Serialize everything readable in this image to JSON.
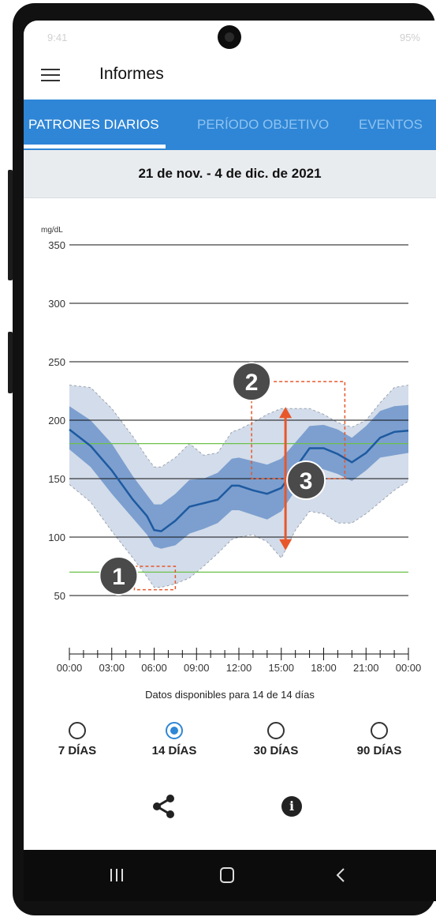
{
  "status_bar": {
    "time": "9:41",
    "indicators": "95%"
  },
  "app_bar": {
    "menu_icon": "hamburger-menu-icon",
    "title": "Informes"
  },
  "tabs": [
    {
      "label": "PATRONES DIARIOS",
      "active": true
    },
    {
      "label": "PERÍODO OBJETIVO",
      "active": false
    },
    {
      "label": "EVENTOS",
      "active": false
    }
  ],
  "date_range": "21 de nov. - 4 de dic. de 2021",
  "chart_data": {
    "type": "area",
    "title": "",
    "ylabel": "mg/dL",
    "xlabel": "",
    "ylim": [
      0,
      350
    ],
    "y_ticks": [
      50,
      100,
      150,
      200,
      250,
      300,
      350
    ],
    "x_ticks": [
      "00:00",
      "03:00",
      "06:00",
      "09:00",
      "12:00",
      "15:00",
      "18:00",
      "21:00",
      "00:00"
    ],
    "x_hours": [
      0,
      1.5,
      3,
      4.5,
      5.5,
      6,
      6.5,
      7.5,
      8.5,
      9.5,
      10.5,
      11.5,
      12,
      13,
      14,
      15,
      16,
      17,
      18,
      19,
      20,
      21,
      22,
      23,
      24
    ],
    "series": [
      {
        "values": [
          192,
          178,
          157,
          132,
          118,
          106,
          105,
          114,
          126,
          129,
          132,
          144,
          144,
          140,
          137,
          142,
          159,
          176,
          176,
          171,
          164,
          172,
          185,
          190,
          191
        ]
      },
      {
        "values": [
          212,
          200,
          180,
          152,
          136,
          128,
          128,
          137,
          149,
          150,
          155,
          167,
          168,
          165,
          162,
          167,
          181,
          195,
          196,
          192,
          185,
          195,
          208,
          212,
          213
        ]
      },
      {
        "values": [
          175,
          160,
          137,
          116,
          102,
          92,
          90,
          93,
          103,
          107,
          112,
          123,
          123,
          119,
          115,
          122,
          140,
          160,
          158,
          154,
          148,
          157,
          168,
          170,
          172
        ]
      },
      {
        "values": [
          230,
          228,
          210,
          186,
          168,
          160,
          160,
          168,
          180,
          170,
          172,
          190,
          192,
          198,
          205,
          210,
          210,
          210,
          205,
          198,
          194,
          200,
          215,
          228,
          230
        ]
      },
      {
        "values": [
          145,
          130,
          105,
          82,
          66,
          57,
          57,
          60,
          65,
          75,
          86,
          98,
          100,
          102,
          96,
          82,
          106,
          122,
          120,
          112,
          112,
          120,
          130,
          140,
          148
        ]
      }
    ],
    "target_range": [
      70,
      180
    ],
    "annotations": [
      {
        "label": "1",
        "time": [
          4.6,
          7.5
        ],
        "value": [
          55,
          75
        ]
      },
      {
        "label": "2",
        "time": [
          12.9,
          19.5
        ],
        "value": [
          150,
          233
        ]
      },
      {
        "label": "3",
        "time": 15.3,
        "range": [
          90,
          210
        ]
      }
    ],
    "colors": {
      "median": "#1e5aa0",
      "iqr": "#7c9fcf",
      "range": "#d3dcea",
      "target": "#6cc24a",
      "annotation": "#e8572a",
      "badge": "#4a4a4a"
    }
  },
  "availability_text": "Datos disponibles para 14 de 14 días",
  "period_options": [
    {
      "label": "7 DÍAS",
      "selected": false
    },
    {
      "label": "14 DÍAS",
      "selected": true
    },
    {
      "label": "30 DÍAS",
      "selected": false
    },
    {
      "label": "90 DÍAS",
      "selected": false
    }
  ],
  "actions": {
    "share_icon": "share-icon",
    "info_icon": "info-icon",
    "info_glyph": "i"
  },
  "nav_bar": {
    "recent_icon": "recent-apps-icon",
    "home_icon": "home-icon",
    "back_icon": "back-icon"
  }
}
